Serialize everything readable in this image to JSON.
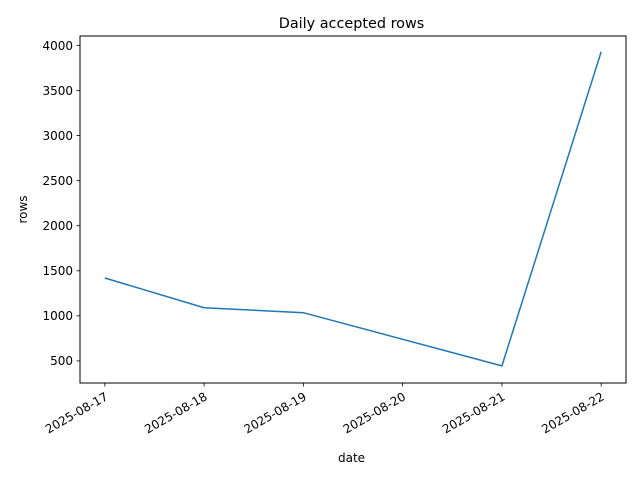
{
  "chart_data": {
    "type": "line",
    "title": "Daily accepted rows",
    "xlabel": "date",
    "ylabel": "rows",
    "x": [
      "2025-08-17",
      "2025-08-18",
      "2025-08-19",
      "2025-08-20",
      "2025-08-21",
      "2025-08-22"
    ],
    "series": [
      {
        "x": [
          "2025-08-17",
          "2025-08-18",
          "2025-08-19",
          "2025-08-21",
          "2025-08-22"
        ],
        "values": [
          1420,
          1090,
          1035,
          445,
          3930
        ],
        "color": "#1f77b4"
      }
    ],
    "xlim": [
      "2025-08-16.75",
      "2025-08-22.25"
    ],
    "ylim": [
      255,
      4105
    ],
    "yticks": [
      500,
      1000,
      1500,
      2000,
      2500,
      3000,
      3500,
      4000
    ],
    "grid": false,
    "legend": "none"
  }
}
